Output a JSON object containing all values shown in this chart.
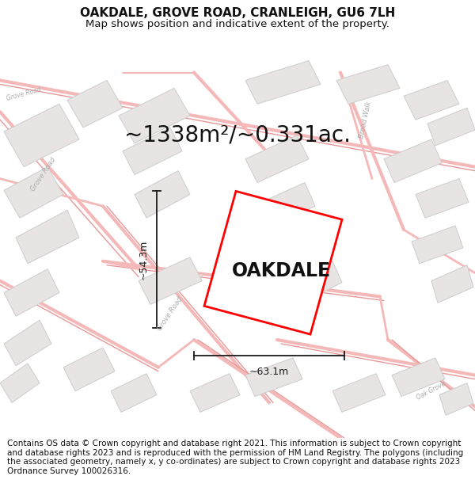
{
  "title": "OAKDALE, GROVE ROAD, CRANLEIGH, GU6 7LH",
  "subtitle": "Map shows position and indicative extent of the property.",
  "area_text": "~1338m²/~0.331ac.",
  "property_label": "OAKDALE",
  "dim_width": "~63.1m",
  "dim_height": "~54.3m",
  "footer_text": "Contains OS data © Crown copyright and database right 2021. This information is subject to Crown copyright and database rights 2023 and is reproduced with the permission of HM Land Registry. The polygons (including the associated geometry, namely x, y co-ordinates) are subject to Crown copyright and database rights 2023 Ordnance Survey 100026316.",
  "bg_color": "#ffffff",
  "map_bg_color": "#ffffff",
  "road_color": "#f5b8b8",
  "road_outline_color": "#f0a0a0",
  "building_color": "#e8e4e4",
  "building_edge_color": "#cccccc",
  "property_color": "#ff0000",
  "property_fill": "#ffffff",
  "dim_color": "#1a1a1a",
  "road_label_color": "#aaaaaa",
  "title_fontsize": 11,
  "subtitle_fontsize": 9.5,
  "area_fontsize": 20,
  "label_fontsize": 17,
  "footer_fontsize": 7.5,
  "figsize": [
    6.0,
    6.25
  ],
  "dpi": 100
}
